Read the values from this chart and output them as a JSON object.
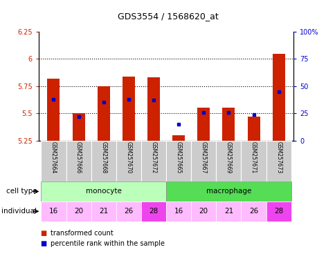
{
  "title": "GDS3554 / 1568620_at",
  "samples": [
    "GSM257664",
    "GSM257666",
    "GSM257668",
    "GSM257670",
    "GSM257672",
    "GSM257665",
    "GSM257667",
    "GSM257669",
    "GSM257671",
    "GSM257673"
  ],
  "transformed_count": [
    5.82,
    5.5,
    5.75,
    5.84,
    5.83,
    5.3,
    5.55,
    5.55,
    5.47,
    6.05
  ],
  "percentile_rank": [
    38,
    22,
    35,
    38,
    37,
    15,
    26,
    26,
    24,
    45
  ],
  "cell_types": [
    "monocyte",
    "monocyte",
    "monocyte",
    "monocyte",
    "monocyte",
    "macrophage",
    "macrophage",
    "macrophage",
    "macrophage",
    "macrophage"
  ],
  "individuals": [
    "16",
    "20",
    "21",
    "26",
    "28",
    "16",
    "20",
    "21",
    "26",
    "28"
  ],
  "ylim_left": [
    5.25,
    6.25
  ],
  "ylim_right": [
    0,
    100
  ],
  "yticks_left": [
    5.25,
    5.5,
    5.75,
    6.0,
    6.25
  ],
  "yticks_right": [
    0,
    25,
    50,
    75,
    100
  ],
  "ytick_labels_left": [
    "5.25",
    "5.5",
    "5.75",
    "6",
    "6.25"
  ],
  "ytick_labels_right": [
    "0",
    "25",
    "50",
    "75",
    "100%"
  ],
  "bar_color": "#cc2200",
  "marker_color": "#0000cc",
  "monocyte_color": "#bbffbb",
  "macrophage_color": "#55dd55",
  "individual_colors": [
    "#ffbbff",
    "#ffbbff",
    "#ffbbff",
    "#ffbbff",
    "#ee44ee",
    "#ffbbff",
    "#ffbbff",
    "#ffbbff",
    "#ffbbff",
    "#ee44ee"
  ],
  "tick_label_color_left": "#cc2200",
  "tick_label_color_right": "#0000cc",
  "baseline": 5.25,
  "legend_red": "transformed count",
  "legend_blue": "percentile rank within the sample",
  "bar_width": 0.5,
  "grid_lines": [
    5.5,
    5.75,
    6.0
  ],
  "label_row_color": "#cccccc"
}
